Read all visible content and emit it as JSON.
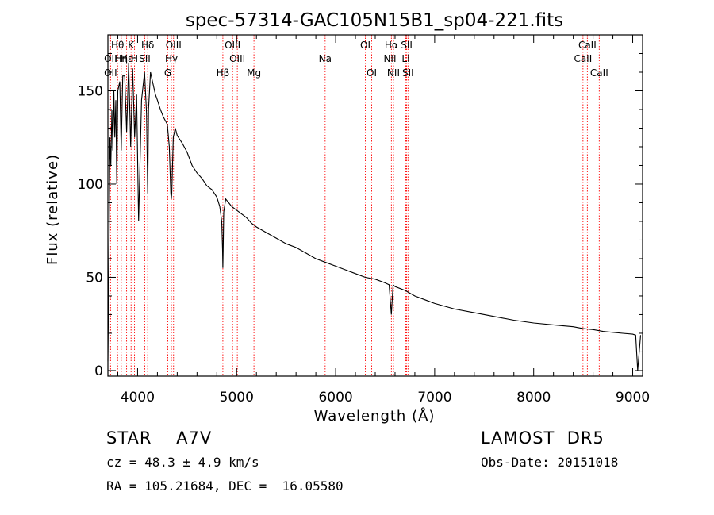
{
  "chart_data": {
    "type": "line",
    "title": "spec-57314-GAC105N15B1_sp04-221.fits",
    "xlabel": "Wavelength (Å)",
    "ylabel": "Flux (relative)",
    "xlim": [
      3700,
      9100
    ],
    "ylim": [
      -3,
      180
    ],
    "x_ticks": [
      4000,
      5000,
      6000,
      7000,
      8000,
      9000
    ],
    "y_ticks": [
      0,
      50,
      100,
      150
    ],
    "grid": false,
    "series": [
      {
        "x": [
          3700,
          3710,
          3720,
          3730,
          3740,
          3750,
          3760,
          3770,
          3780,
          3790,
          3800,
          3820,
          3835,
          3850,
          3870,
          3889,
          3910,
          3930,
          3950,
          3970,
          3990,
          4010,
          4040,
          4070,
          4090,
          4102,
          4110,
          4130,
          4150,
          4180,
          4200,
          4230,
          4260,
          4300,
          4320,
          4335,
          4340,
          4345,
          4360,
          4380,
          4400,
          4450,
          4500,
          4550,
          4600,
          4650,
          4700,
          4750,
          4800,
          4830,
          4850,
          4858,
          4861,
          4864,
          4870,
          4890,
          4920,
          4950,
          5000,
          5050,
          5100,
          5150,
          5200,
          5300,
          5400,
          5500,
          5600,
          5700,
          5800,
          5900,
          6000,
          6100,
          6200,
          6300,
          6400,
          6500,
          6540,
          6563,
          6580,
          6600,
          6700,
          6800,
          6900,
          7000,
          7200,
          7400,
          7600,
          7800,
          8000,
          8200,
          8400,
          8500,
          8600,
          8700,
          8800,
          8900,
          9000,
          9030,
          9050,
          9080
        ],
        "y": [
          5,
          55,
          125,
          110,
          140,
          118,
          150,
          125,
          145,
          100,
          150,
          155,
          118,
          158,
          158,
          128,
          165,
          120,
          162,
          125,
          148,
          80,
          145,
          160,
          138,
          95,
          140,
          160,
          155,
          148,
          145,
          140,
          136,
          132,
          120,
          95,
          92,
          95,
          125,
          130,
          126,
          122,
          117,
          110,
          106,
          103,
          99,
          97,
          93,
          88,
          80,
          65,
          55,
          65,
          85,
          92,
          90,
          88,
          86,
          84,
          82,
          79,
          77,
          74,
          71,
          68,
          66,
          63,
          60,
          58,
          56,
          54,
          52,
          50,
          49,
          47,
          46,
          30,
          46,
          45,
          43,
          40,
          38,
          36,
          33,
          31,
          29,
          27,
          25.5,
          24.5,
          23.5,
          22.5,
          22,
          21,
          20.5,
          20,
          19.5,
          19,
          0,
          19
        ]
      }
    ],
    "line_labels": [
      {
        "text": "Hθ",
        "x": 3798,
        "row": 0
      },
      {
        "text": "OII",
        "x": 3727,
        "row": 1
      },
      {
        "text": "OII",
        "x": 3727,
        "row": 2
      },
      {
        "text": "Hη",
        "x": 3835,
        "row": 1
      },
      {
        "text": "Hε",
        "x": 3889,
        "row": 1
      },
      {
        "text": "K",
        "x": 3934,
        "row": 0
      },
      {
        "text": "H",
        "x": 3969,
        "row": 1
      },
      {
        "text": "Hδ",
        "x": 4102,
        "row": 0
      },
      {
        "text": "SII",
        "x": 4072,
        "row": 1
      },
      {
        "text": "OIII",
        "x": 4363,
        "row": 0
      },
      {
        "text": "Hγ",
        "x": 4341,
        "row": 1
      },
      {
        "text": "G",
        "x": 4305,
        "row": 2
      },
      {
        "text": "OIII",
        "x": 4959,
        "row": 0
      },
      {
        "text": "OIII",
        "x": 5007,
        "row": 1
      },
      {
        "text": "Hβ",
        "x": 4861,
        "row": 2
      },
      {
        "text": "Mg",
        "x": 5175,
        "row": 2
      },
      {
        "text": "Na",
        "x": 5894,
        "row": 1
      },
      {
        "text": "OI",
        "x": 6300,
        "row": 0
      },
      {
        "text": "OI",
        "x": 6364,
        "row": 2
      },
      {
        "text": "Hα",
        "x": 6563,
        "row": 0
      },
      {
        "text": "NII",
        "x": 6548,
        "row": 1
      },
      {
        "text": "NII",
        "x": 6584,
        "row": 2
      },
      {
        "text": "SII",
        "x": 6717,
        "row": 0
      },
      {
        "text": "Li",
        "x": 6708,
        "row": 1
      },
      {
        "text": "SII",
        "x": 6731,
        "row": 2
      },
      {
        "text": "CaII",
        "x": 8542,
        "row": 0
      },
      {
        "text": "CaII",
        "x": 8498,
        "row": 1
      },
      {
        "text": "CaII",
        "x": 8662,
        "row": 2
      }
    ],
    "line_positions": [
      3727,
      3798,
      3835,
      3889,
      3934,
      3969,
      4072,
      4102,
      4305,
      4341,
      4363,
      4861,
      4959,
      5007,
      5175,
      5894,
      6300,
      6364,
      6548,
      6563,
      6584,
      6708,
      6717,
      6731,
      8498,
      8542,
      8662
    ],
    "line_color": "#ff0000",
    "curve_color": "#000000"
  },
  "info": {
    "class": "STAR    A7V",
    "survey": "LAMOST  DR5",
    "cz": "cz = 48.3 ± 4.9 km/s",
    "obs_date": "Obs-Date: 20151018",
    "radec": "RA = 105.21684, DEC =  16.05580"
  }
}
